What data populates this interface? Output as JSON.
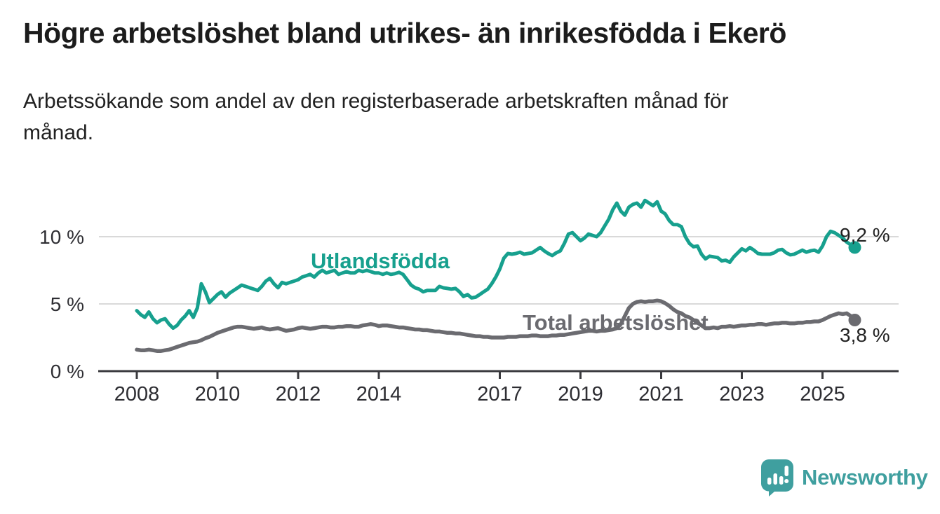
{
  "title": "Högre arbetslöshet bland utrikes- än inrikesfödda i Ekerö",
  "subtitle_lines": [
    "Arbetssökande som andel av den registerbaserade arbetskraften månad för",
    "månad."
  ],
  "chart_data": {
    "type": "line",
    "title": "Högre arbetslöshet bland utrikes- än inrikesfödda i Ekerö",
    "subtitle": "Arbetssökande som andel av den registerbaserade arbetskraften månad för månad.",
    "unit": "%",
    "x_start": 2008.0,
    "x_step": 0.1,
    "xlim": [
      2007.0,
      2026.2
    ],
    "ylim": [
      0,
      13.5
    ],
    "grid": "horizontal",
    "grid_color": "#d9d9d9",
    "axis_color": "#3a3a3e",
    "axis_text_color": "#2e2e33",
    "value_label_color": "#212121",
    "x_ticks": [
      2008,
      2010,
      2012,
      2014,
      2017,
      2019,
      2021,
      2023,
      2025
    ],
    "x_tick_labels": [
      "2008",
      "2010",
      "2012",
      "2014",
      "2017",
      "2019",
      "2021",
      "2023",
      "2025"
    ],
    "y_ticks": [
      0,
      5,
      10
    ],
    "y_tick_labels": [
      "0 %",
      "5 %",
      "10 %"
    ],
    "series": [
      {
        "name": "Utlandsfödda",
        "color": "#17a08e",
        "line_width": 5,
        "end_value": 9.2,
        "end_label": "9,2 %",
        "values": [
          4.5,
          4.2,
          4.0,
          4.4,
          3.9,
          3.6,
          3.8,
          3.9,
          3.5,
          3.2,
          3.4,
          3.8,
          4.1,
          4.5,
          4.0,
          4.7,
          6.5,
          5.9,
          5.1,
          5.4,
          5.7,
          5.9,
          5.5,
          5.8,
          6.0,
          6.2,
          6.4,
          6.3,
          6.2,
          6.1,
          6.0,
          6.3,
          6.7,
          6.9,
          6.5,
          6.2,
          6.6,
          6.5,
          6.6,
          6.7,
          6.8,
          7.0,
          7.1,
          7.2,
          7.0,
          7.3,
          7.5,
          7.3,
          7.4,
          7.5,
          7.2,
          7.3,
          7.4,
          7.3,
          7.3,
          7.5,
          7.4,
          7.5,
          7.4,
          7.3,
          7.3,
          7.2,
          7.3,
          7.2,
          7.25,
          7.35,
          7.2,
          6.8,
          6.4,
          6.2,
          6.1,
          5.9,
          6.0,
          6.0,
          6.0,
          6.3,
          6.2,
          6.15,
          6.1,
          6.15,
          5.9,
          5.55,
          5.7,
          5.45,
          5.5,
          5.7,
          5.9,
          6.1,
          6.5,
          7.0,
          7.6,
          8.4,
          8.75,
          8.7,
          8.75,
          8.85,
          8.7,
          8.75,
          8.8,
          9.0,
          9.2,
          8.95,
          8.75,
          8.6,
          8.8,
          8.95,
          9.5,
          10.2,
          10.3,
          10.0,
          9.7,
          9.9,
          10.2,
          10.1,
          10.0,
          10.3,
          10.8,
          11.3,
          12.0,
          12.5,
          11.9,
          11.6,
          12.2,
          12.4,
          12.5,
          12.2,
          12.7,
          12.5,
          12.3,
          12.6,
          11.9,
          11.7,
          11.2,
          10.9,
          10.9,
          10.75,
          10.0,
          9.5,
          9.25,
          9.3,
          8.7,
          8.35,
          8.55,
          8.5,
          8.45,
          8.2,
          8.25,
          8.1,
          8.5,
          8.8,
          9.1,
          8.95,
          9.2,
          9.0,
          8.75,
          8.7,
          8.7,
          8.7,
          8.8,
          9.0,
          9.05,
          8.8,
          8.65,
          8.7,
          8.85,
          9.0,
          8.85,
          8.95,
          9.0,
          8.85,
          9.3,
          10.0,
          10.4,
          10.3,
          10.1,
          9.9,
          9.6,
          9.4,
          9.2
        ]
      },
      {
        "name": "Total arbetslöshet",
        "color": "#6b6b70",
        "line_width": 5.5,
        "end_value": 3.8,
        "end_label": "3,8 %",
        "values": [
          1.6,
          1.55,
          1.55,
          1.6,
          1.55,
          1.5,
          1.5,
          1.55,
          1.6,
          1.7,
          1.8,
          1.9,
          2.0,
          2.1,
          2.15,
          2.2,
          2.3,
          2.45,
          2.55,
          2.7,
          2.85,
          2.95,
          3.05,
          3.15,
          3.25,
          3.3,
          3.3,
          3.25,
          3.2,
          3.15,
          3.2,
          3.25,
          3.15,
          3.1,
          3.15,
          3.2,
          3.1,
          3.0,
          3.05,
          3.1,
          3.2,
          3.25,
          3.2,
          3.15,
          3.2,
          3.25,
          3.3,
          3.3,
          3.25,
          3.25,
          3.3,
          3.3,
          3.35,
          3.35,
          3.3,
          3.3,
          3.4,
          3.45,
          3.5,
          3.45,
          3.35,
          3.4,
          3.4,
          3.35,
          3.3,
          3.25,
          3.25,
          3.2,
          3.15,
          3.1,
          3.1,
          3.05,
          3.05,
          3.0,
          2.95,
          2.95,
          2.9,
          2.85,
          2.85,
          2.8,
          2.8,
          2.75,
          2.7,
          2.65,
          2.6,
          2.6,
          2.55,
          2.55,
          2.5,
          2.5,
          2.5,
          2.5,
          2.55,
          2.55,
          2.55,
          2.6,
          2.6,
          2.6,
          2.65,
          2.65,
          2.6,
          2.6,
          2.6,
          2.65,
          2.65,
          2.7,
          2.7,
          2.75,
          2.8,
          2.85,
          2.9,
          2.95,
          3.0,
          3.0,
          2.95,
          3.0,
          3.0,
          3.05,
          3.1,
          3.2,
          3.5,
          4.1,
          4.7,
          5.0,
          5.15,
          5.2,
          5.15,
          5.2,
          5.2,
          5.25,
          5.2,
          5.05,
          4.85,
          4.6,
          4.4,
          4.3,
          4.1,
          4.0,
          3.8,
          3.6,
          3.4,
          3.2,
          3.2,
          3.25,
          3.2,
          3.3,
          3.3,
          3.35,
          3.3,
          3.35,
          3.4,
          3.4,
          3.45,
          3.45,
          3.5,
          3.5,
          3.45,
          3.5,
          3.55,
          3.55,
          3.6,
          3.6,
          3.55,
          3.55,
          3.6,
          3.6,
          3.65,
          3.65,
          3.7,
          3.7,
          3.8,
          3.95,
          4.1,
          4.2,
          4.3,
          4.25,
          4.3,
          4.1,
          3.8
        ]
      }
    ],
    "legend_position": "inline-labels"
  },
  "branding": {
    "logo_text": "Newsworthy",
    "logo_color": "#3f9f9f",
    "logo_icon": "newsworthy-speech-bubble-bar-chart-icon"
  }
}
